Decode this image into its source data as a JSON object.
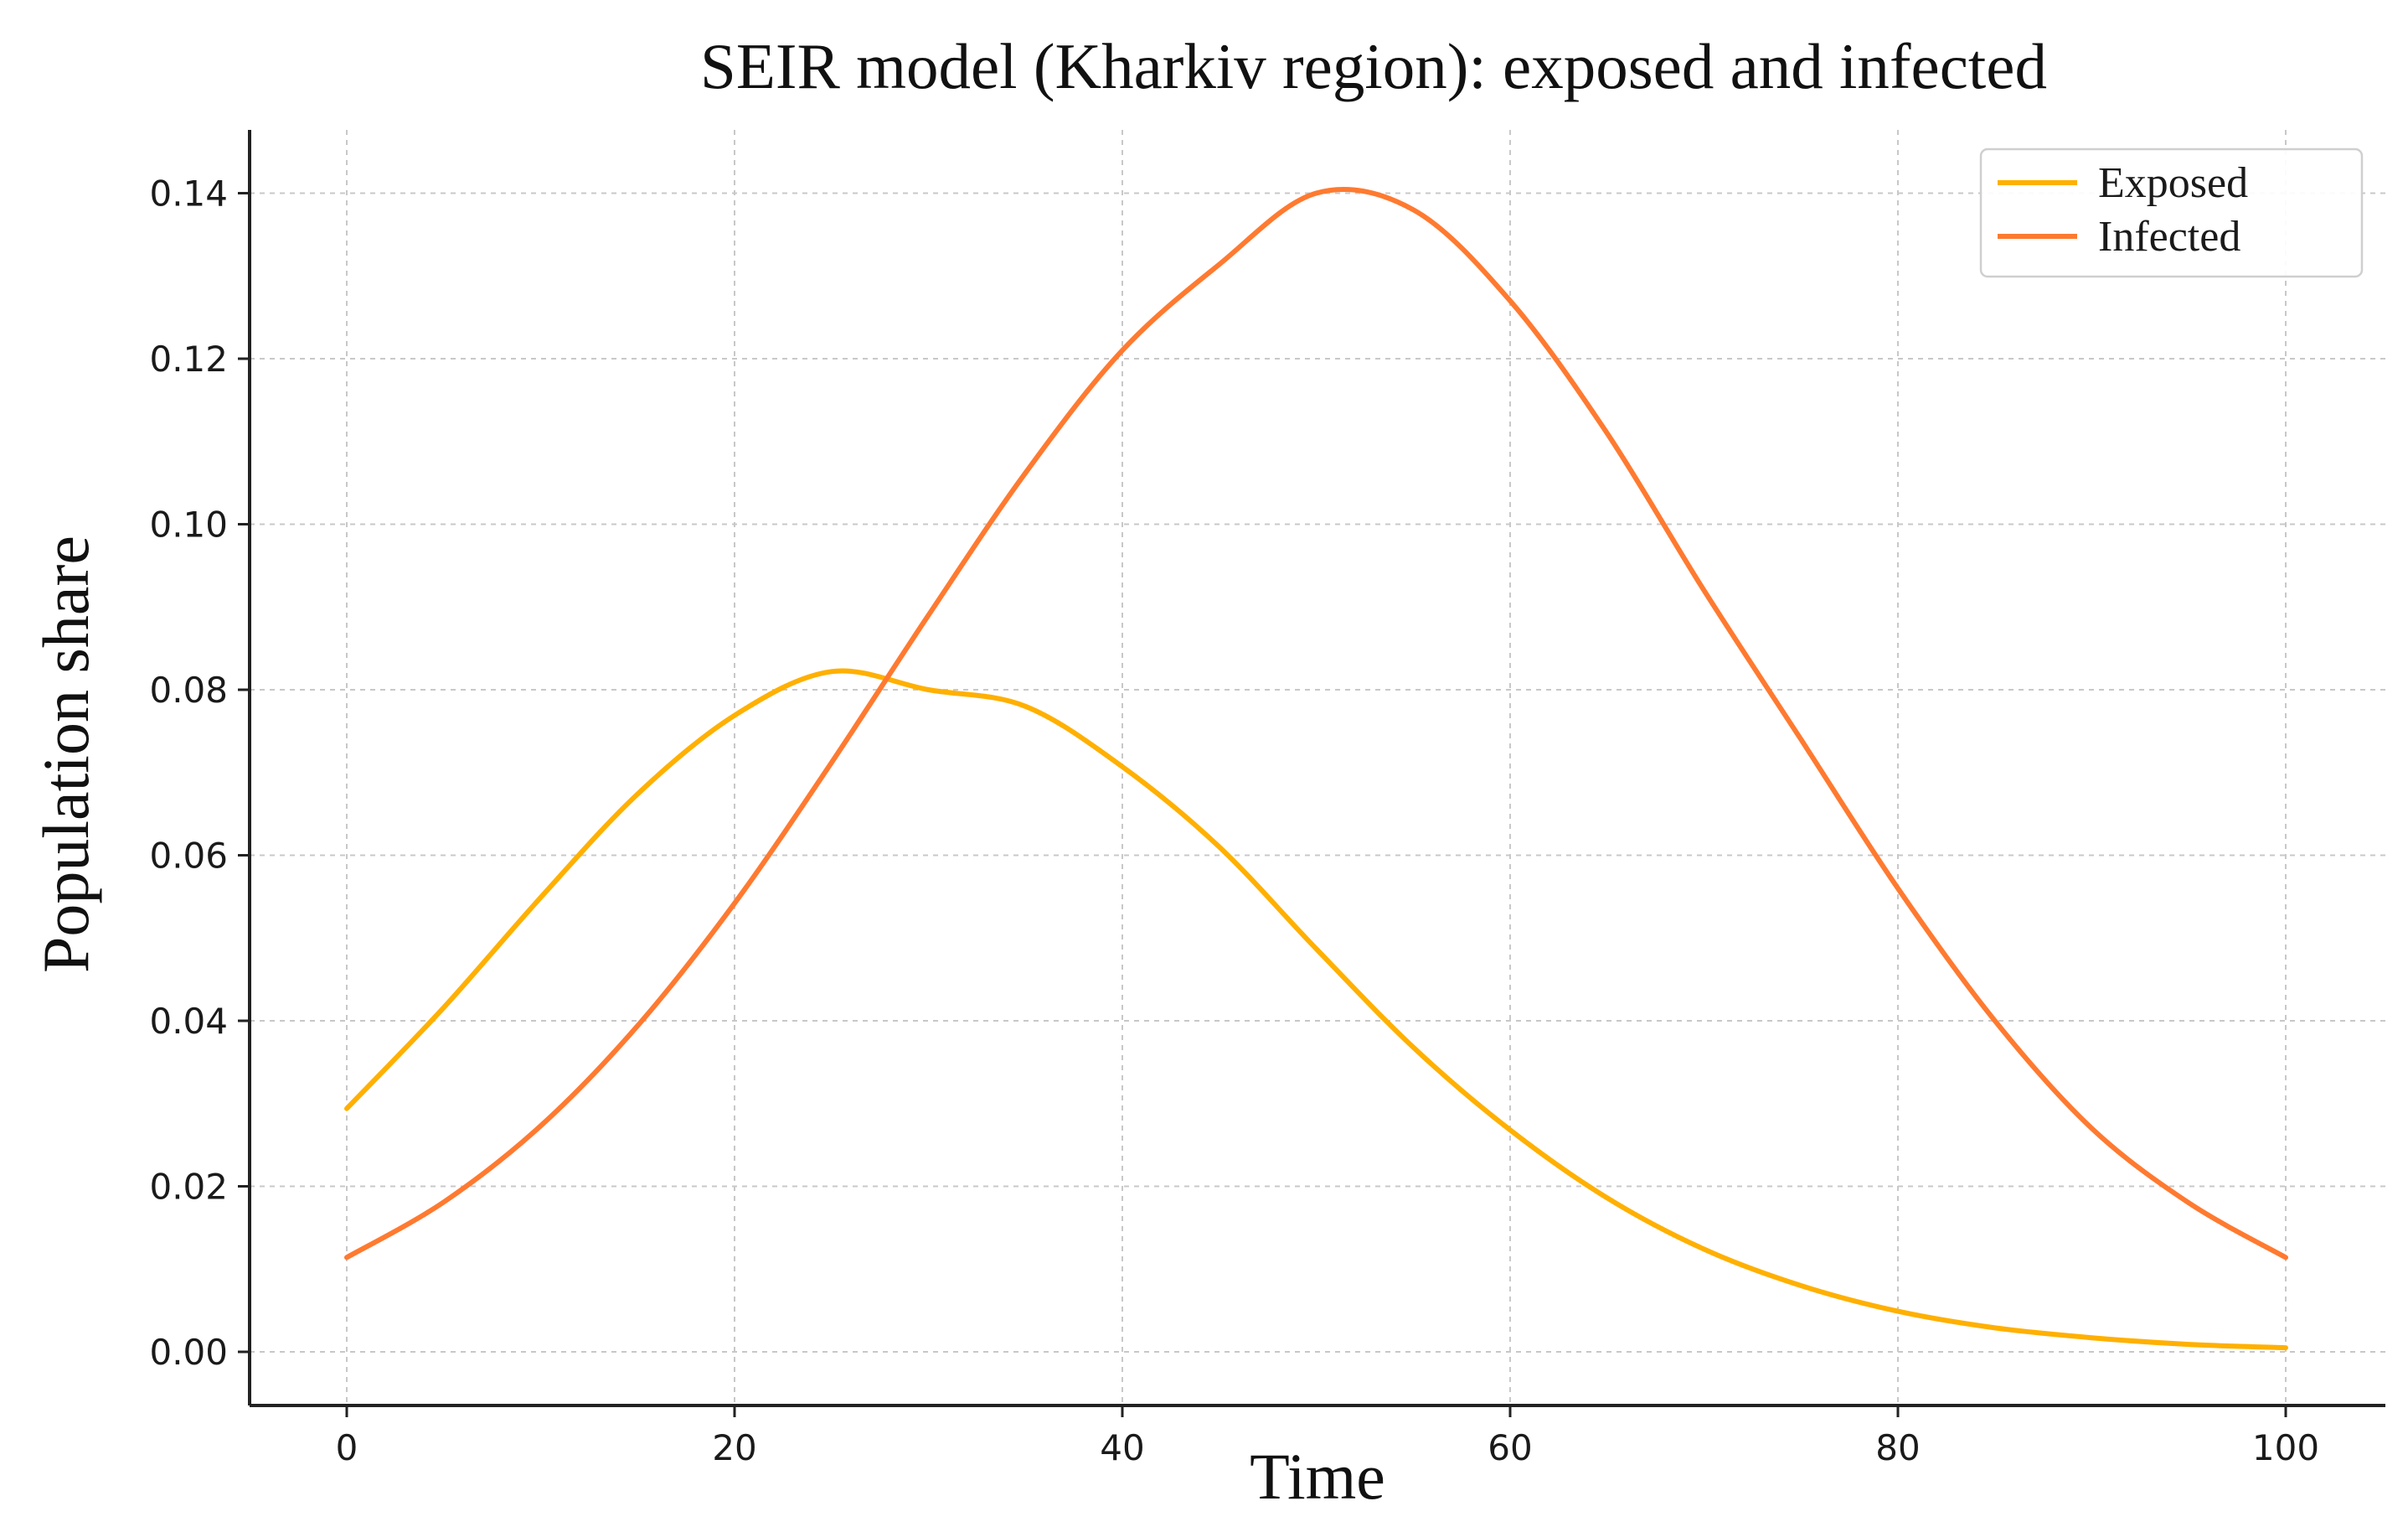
{
  "chart_data": {
    "type": "line",
    "title": "SEIR model (Kharkiv region): exposed and infected",
    "xlabel": "Time",
    "ylabel": "Population share",
    "xlim": [
      -5,
      105
    ],
    "ylim": [
      -0.0065,
      0.147
    ],
    "xticks": [
      0,
      20,
      40,
      60,
      80,
      100
    ],
    "xtick_labels": [
      "0",
      "20",
      "40",
      "60",
      "80",
      "100"
    ],
    "yticks": [
      0.0,
      0.02,
      0.04,
      0.06,
      0.08,
      0.1,
      0.12,
      0.14
    ],
    "ytick_labels": [
      "0.00",
      "0.02",
      "0.04",
      "0.06",
      "0.08",
      "0.10",
      "0.12",
      "0.14"
    ],
    "grid": true,
    "legend_position": "top-right",
    "x": [
      0,
      5,
      10,
      15,
      20,
      25,
      30,
      35,
      40,
      45,
      50,
      55,
      60,
      65,
      70,
      75,
      80,
      85,
      90,
      95,
      100
    ],
    "series": [
      {
        "name": "Exposed",
        "color": "#FFB000",
        "values": [
          0.0294,
          0.0416,
          0.0549,
          0.0674,
          0.0769,
          0.0822,
          0.08,
          0.078,
          0.0707,
          0.061,
          0.0487,
          0.0368,
          0.0268,
          0.0186,
          0.0124,
          0.008,
          0.0049,
          0.0029,
          0.0017,
          0.0009,
          0.0005
        ]
      },
      {
        "name": "Infected",
        "color": "#FF7A30",
        "values": [
          0.0114,
          0.0181,
          0.0273,
          0.0394,
          0.0542,
          0.0712,
          0.089,
          0.1062,
          0.121,
          0.1314,
          0.14,
          0.138,
          0.127,
          0.111,
          0.092,
          0.074,
          0.056,
          0.04,
          0.027,
          0.018,
          0.0114
        ]
      }
    ]
  }
}
